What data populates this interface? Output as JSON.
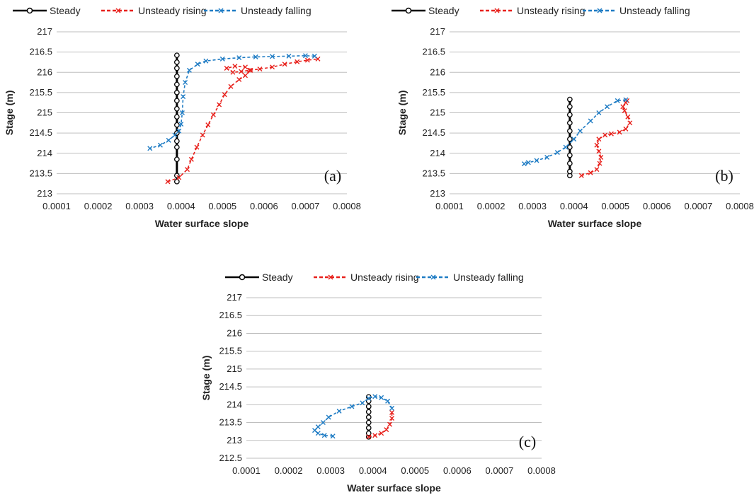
{
  "legend": [
    {
      "name": "Steady",
      "color": "#000000",
      "marker": "circle",
      "dash": "solid"
    },
    {
      "name": "Unsteady rising",
      "color": "#e8211c",
      "marker": "cross",
      "dash": "dashed"
    },
    {
      "name": "Unsteady  falling",
      "color": "#1f7cc4",
      "marker": "cross",
      "dash": "dashed"
    }
  ],
  "chart_data": [
    {
      "type": "line",
      "panel_label": "(a)",
      "xlabel": "Water surface slope",
      "ylabel": "Stage (m)",
      "xlim": [
        0.0001,
        0.0008
      ],
      "ylim": [
        213,
        217
      ],
      "xticks": [
        "0.0001",
        "0.0002",
        "0.0003",
        "0.0004",
        "0.0005",
        "0.0006",
        "0.0007",
        "0.0008"
      ],
      "yticks": [
        "213",
        "213.5",
        "214",
        "214.5",
        "215",
        "215.5",
        "216",
        "216.5",
        "217"
      ],
      "grid": true,
      "series": [
        {
          "name": "Steady",
          "points": [
            [
              0.00039,
              213.3
            ],
            [
              0.00039,
              213.45
            ],
            [
              0.00039,
              213.85
            ],
            [
              0.00039,
              214.15
            ],
            [
              0.00039,
              214.3
            ],
            [
              0.00039,
              214.5
            ],
            [
              0.00039,
              214.7
            ],
            [
              0.00039,
              214.9
            ],
            [
              0.00039,
              215.1
            ],
            [
              0.00039,
              215.3
            ],
            [
              0.00039,
              215.5
            ],
            [
              0.00039,
              215.7
            ],
            [
              0.00039,
              215.9
            ],
            [
              0.00039,
              216.1
            ],
            [
              0.00039,
              216.25
            ],
            [
              0.00039,
              216.42
            ]
          ]
        },
        {
          "name": "Unsteady rising",
          "points": [
            [
              0.000368,
              213.3
            ],
            [
              0.000395,
              213.4
            ],
            [
              0.000415,
              213.6
            ],
            [
              0.000425,
              213.85
            ],
            [
              0.000438,
              214.15
            ],
            [
              0.000452,
              214.45
            ],
            [
              0.000465,
              214.7
            ],
            [
              0.000478,
              214.95
            ],
            [
              0.000492,
              215.2
            ],
            [
              0.000505,
              215.45
            ],
            [
              0.00052,
              215.65
            ],
            [
              0.00054,
              215.82
            ],
            [
              0.000555,
              215.92
            ],
            [
              0.000568,
              216.05
            ],
            [
              0.000555,
              216.13
            ],
            [
              0.00053,
              216.15
            ],
            [
              0.00051,
              216.1
            ],
            [
              0.000525,
              216.0
            ],
            [
              0.000545,
              216.02
            ],
            [
              0.000565,
              216.05
            ],
            [
              0.00059,
              216.08
            ],
            [
              0.00062,
              216.13
            ],
            [
              0.00065,
              216.2
            ],
            [
              0.00068,
              216.26
            ],
            [
              0.000705,
              216.3
            ],
            [
              0.00073,
              216.33
            ]
          ]
        },
        {
          "name": "Unsteady  falling",
          "points": [
            [
              0.000722,
              216.4
            ],
            [
              0.0007,
              216.41
            ],
            [
              0.00066,
              216.4
            ],
            [
              0.00062,
              216.39
            ],
            [
              0.00058,
              216.38
            ],
            [
              0.00054,
              216.36
            ],
            [
              0.0005,
              216.33
            ],
            [
              0.00046,
              216.28
            ],
            [
              0.00044,
              216.2
            ],
            [
              0.00042,
              216.05
            ],
            [
              0.00041,
              215.75
            ],
            [
              0.000405,
              215.4
            ],
            [
              0.000403,
              215.0
            ],
            [
              0.0004,
              214.72
            ],
            [
              0.000395,
              214.55
            ],
            [
              0.000385,
              214.45
            ],
            [
              0.00037,
              214.32
            ],
            [
              0.00035,
              214.2
            ],
            [
              0.000325,
              214.12
            ]
          ]
        }
      ]
    },
    {
      "type": "line",
      "panel_label": "(b)",
      "xlabel": "Water surface slope",
      "ylabel": "Stage (m)",
      "xlim": [
        0.0001,
        0.0008
      ],
      "ylim": [
        213,
        217
      ],
      "xticks": [
        "0.0001",
        "0.0002",
        "0.0003",
        "0.0004",
        "0.0005",
        "0.0006",
        "0.0007",
        "0.0008"
      ],
      "yticks": [
        "213",
        "213.5",
        "214",
        "214.5",
        "215",
        "215.5",
        "216",
        "216.5",
        "217"
      ],
      "grid": true,
      "series": [
        {
          "name": "Steady",
          "points": [
            [
              0.00039,
              213.45
            ],
            [
              0.00039,
              213.55
            ],
            [
              0.00039,
              213.75
            ],
            [
              0.00039,
              213.95
            ],
            [
              0.00039,
              214.15
            ],
            [
              0.00039,
              214.35
            ],
            [
              0.00039,
              214.55
            ],
            [
              0.00039,
              214.75
            ],
            [
              0.00039,
              214.95
            ],
            [
              0.00039,
              215.15
            ],
            [
              0.00039,
              215.33
            ]
          ]
        },
        {
          "name": "Unsteady rising",
          "points": [
            [
              0.000418,
              213.45
            ],
            [
              0.00044,
              213.52
            ],
            [
              0.000455,
              213.6
            ],
            [
              0.000462,
              213.75
            ],
            [
              0.000465,
              213.9
            ],
            [
              0.00046,
              214.05
            ],
            [
              0.000455,
              214.2
            ],
            [
              0.00046,
              214.35
            ],
            [
              0.000475,
              214.45
            ],
            [
              0.00049,
              214.48
            ],
            [
              0.00051,
              214.52
            ],
            [
              0.000525,
              214.6
            ],
            [
              0.000535,
              214.75
            ],
            [
              0.00053,
              214.9
            ],
            [
              0.000522,
              215.05
            ],
            [
              0.000518,
              215.15
            ],
            [
              0.000525,
              215.25
            ],
            [
              0.000528,
              215.3
            ]
          ]
        },
        {
          "name": "Unsteady  falling",
          "points": [
            [
              0.000525,
              215.32
            ],
            [
              0.000505,
              215.3
            ],
            [
              0.00048,
              215.15
            ],
            [
              0.00046,
              215.0
            ],
            [
              0.00044,
              214.8
            ],
            [
              0.000415,
              214.55
            ],
            [
              0.0004,
              214.35
            ],
            [
              0.00038,
              214.15
            ],
            [
              0.00036,
              214.02
            ],
            [
              0.000335,
              213.9
            ],
            [
              0.00031,
              213.82
            ],
            [
              0.00029,
              213.77
            ],
            [
              0.00028,
              213.74
            ]
          ]
        }
      ]
    },
    {
      "type": "line",
      "panel_label": "(c)",
      "xlabel": "Water surface slope",
      "ylabel": "Stage (m)",
      "xlim": [
        0.0001,
        0.0008
      ],
      "ylim": [
        212.5,
        217
      ],
      "xticks": [
        "0.0001",
        "0.0002",
        "0.0003",
        "0.0004",
        "0.0005",
        "0.0006",
        "0.0007",
        "0.0008"
      ],
      "yticks": [
        "212.5",
        "213",
        "213.5",
        "214",
        "214.5",
        "215",
        "215.5",
        "216",
        "216.5",
        "217"
      ],
      "grid": true,
      "series": [
        {
          "name": "Steady",
          "points": [
            [
              0.00039,
              213.1
            ],
            [
              0.00039,
              213.2
            ],
            [
              0.00039,
              213.35
            ],
            [
              0.00039,
              213.5
            ],
            [
              0.00039,
              213.65
            ],
            [
              0.00039,
              213.8
            ],
            [
              0.00039,
              213.95
            ],
            [
              0.00039,
              214.1
            ],
            [
              0.00039,
              214.22
            ]
          ]
        },
        {
          "name": "Unsteady rising",
          "points": [
            [
              0.00039,
              213.1
            ],
            [
              0.000405,
              213.14
            ],
            [
              0.00042,
              213.2
            ],
            [
              0.000432,
              213.3
            ],
            [
              0.00044,
              213.45
            ],
            [
              0.000445,
              213.62
            ],
            [
              0.000445,
              213.78
            ]
          ]
        },
        {
          "name": "Unsteady  falling",
          "points": [
            [
              0.000445,
              213.9
            ],
            [
              0.000435,
              214.1
            ],
            [
              0.00042,
              214.2
            ],
            [
              0.000405,
              214.23
            ],
            [
              0.00039,
              214.18
            ],
            [
              0.000375,
              214.05
            ],
            [
              0.00035,
              213.95
            ],
            [
              0.00032,
              213.82
            ],
            [
              0.000295,
              213.65
            ],
            [
              0.000282,
              213.5
            ],
            [
              0.00027,
              213.38
            ],
            [
              0.000262,
              213.28
            ],
            [
              0.00027,
              213.2
            ],
            [
              0.000285,
              213.14
            ],
            [
              0.000305,
              213.12
            ]
          ]
        }
      ]
    }
  ]
}
